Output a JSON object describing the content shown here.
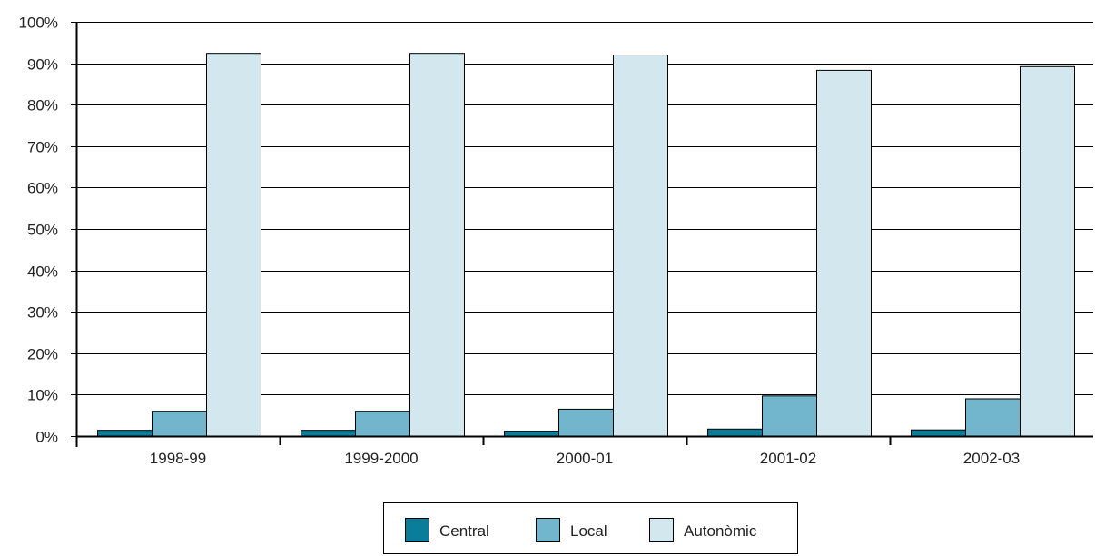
{
  "chart_data": {
    "type": "bar",
    "title": "",
    "xlabel": "",
    "ylabel": "",
    "categories": [
      "1998-99",
      "1999-2000",
      "2000-01",
      "2001-02",
      "2002-03"
    ],
    "series": [
      {
        "name": "Central",
        "values": [
          1.5,
          1.5,
          1.3,
          1.8,
          1.6
        ]
      },
      {
        "name": "Local",
        "values": [
          6.1,
          6.1,
          6.6,
          9.8,
          9.1
        ]
      },
      {
        "name": "Autonòmic",
        "values": [
          92.5,
          92.5,
          92.1,
          88.4,
          89.3
        ]
      }
    ],
    "ylim": [
      0,
      100
    ],
    "y_tick_labels": [
      "0%",
      "10%",
      "20%",
      "30%",
      "40%",
      "50%",
      "60%",
      "70%",
      "80%",
      "90%",
      "100%"
    ],
    "grid": true,
    "legend_position": "bottom-center",
    "colors": {
      "Central": "#0a7d9a",
      "Local": "#72b6ce",
      "Autonòmic": "#d3e7ee",
      "grid": "#000000",
      "bar_outline": "#000000"
    }
  }
}
